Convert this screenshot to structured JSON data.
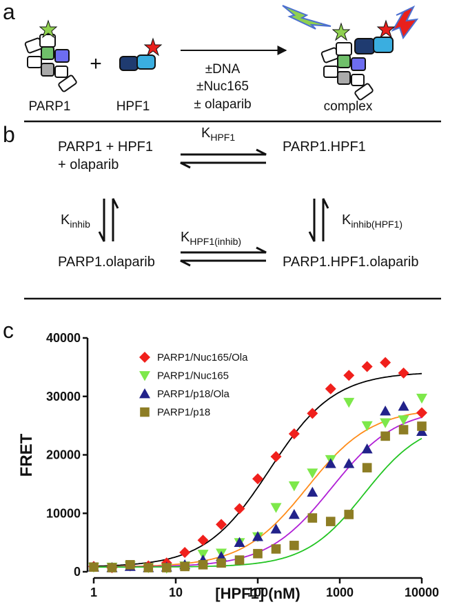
{
  "panel_a": {
    "label": "a",
    "parp1": "PARP1",
    "plus": "+",
    "hpf1": "HPF1",
    "conditions": [
      "±DNA",
      "±Nuc165",
      "± olaparib"
    ],
    "product": "complex"
  },
  "panel_b": {
    "label": "b",
    "states": {
      "free": "PARP1 + HPF1",
      "free_drug": "+ olaparib",
      "complex": "PARP1.HPF1",
      "inhibited": "PARP1.olaparib",
      "ternary": "PARP1.HPF1.olaparib"
    },
    "constants": {
      "top": {
        "symbol": "K",
        "subscript": "HPF1"
      },
      "left": {
        "symbol": "K",
        "subscript": "inhib"
      },
      "right": {
        "symbol": "K",
        "subscript": "inhib(HPF1)"
      },
      "bottom": {
        "symbol": "K",
        "subscript": "HPF1(inhib)"
      }
    }
  },
  "panel_c_label": "c",
  "chart_data": {
    "type": "scatter",
    "xlabel": "[HPF1] (nM)",
    "ylabel": "FRET",
    "xscale": "log",
    "xlim": [
      1,
      10000
    ],
    "xticks": [
      1,
      10,
      100,
      1000,
      10000
    ],
    "ylim": [
      0,
      40000
    ],
    "yticks": [
      0,
      10000,
      20000,
      30000,
      40000
    ],
    "grid": false,
    "legend": "upper left",
    "x": [
      1,
      1.67,
      2.78,
      4.64,
      7.74,
      12.9,
      21.5,
      35.9,
      59.9,
      100,
      167,
      278,
      464,
      774,
      1292,
      2154,
      3594,
      5995,
      10000
    ],
    "series": [
      {
        "name": "PARP1/Nuc165/Ola",
        "color": "#f0201c",
        "marker": "diamond",
        "values": [
          900,
          700,
          1000,
          1000,
          1500,
          3300,
          5400,
          8100,
          10800,
          15900,
          19700,
          23600,
          27100,
          31300,
          33600,
          35100,
          35800,
          34000,
          27200
        ],
        "fit": {
          "color": "#000000",
          "bottom": 800,
          "top": 34200,
          "ec50": 140,
          "hill": 1.1
        }
      },
      {
        "name": "PARP1/Nuc165",
        "color": "#7de84a",
        "marker": "triangle-down",
        "values": [
          800,
          800,
          1000,
          700,
          600,
          1000,
          3000,
          3200,
          5000,
          6000,
          11000,
          14700,
          16900,
          19200,
          29000,
          25000,
          25500,
          26000,
          29700
        ],
        "fit": {
          "color": "#ff8c1a",
          "bottom": 800,
          "top": 28000,
          "ec50": 400,
          "hill": 1.1
        }
      },
      {
        "name": "PARP1/p18/Ola",
        "color": "#22228a",
        "marker": "triangle-up",
        "values": [
          800,
          700,
          900,
          700,
          800,
          1200,
          2000,
          2600,
          5000,
          6000,
          7300,
          9800,
          13600,
          18500,
          18500,
          21000,
          27500,
          28300,
          24000
        ],
        "fit": {
          "color": "#b01fd6",
          "bottom": 800,
          "top": 28000,
          "ec50": 800,
          "hill": 1.1
        }
      },
      {
        "name": "PARP1/p18",
        "color": "#8d7d24",
        "marker": "square",
        "values": [
          800,
          700,
          1200,
          700,
          700,
          900,
          1200,
          1500,
          2000,
          3100,
          3900,
          4500,
          9200,
          8600,
          9800,
          17800,
          23200,
          24300,
          24900
        ],
        "fit": {
          "color": "#22c422",
          "bottom": 800,
          "top": 26000,
          "ec50": 2000,
          "hill": 1.2
        }
      }
    ]
  }
}
